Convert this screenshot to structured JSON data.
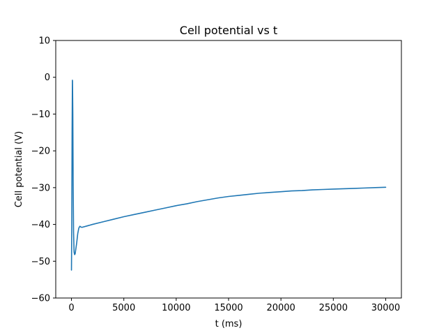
{
  "chart_data": {
    "type": "line",
    "title": "Cell potential vs t",
    "xlabel": "t (ms)",
    "ylabel": "Cell potential (V)",
    "xlim": [
      -1500,
      31500
    ],
    "ylim": [
      -60,
      10
    ],
    "xticks": [
      0,
      5000,
      10000,
      15000,
      20000,
      25000,
      30000
    ],
    "yticks": [
      -60,
      -50,
      -40,
      -30,
      -20,
      -10,
      0,
      10
    ],
    "grid": false,
    "legend": "none",
    "series": [
      {
        "color": "#1f77b4",
        "x": [
          0,
          30,
          60,
          90,
          100,
          130,
          160,
          200,
          250,
          300,
          350,
          400,
          500,
          600,
          700,
          800,
          900,
          1000,
          1500,
          2000,
          3000,
          4000,
          5000,
          6000,
          7000,
          8000,
          9000,
          10000,
          11000,
          12000,
          13000,
          14000,
          15000,
          16000,
          17000,
          18000,
          19000,
          20000,
          21000,
          22000,
          23000,
          24000,
          25000,
          26000,
          27000,
          28000,
          29000,
          30000
        ],
        "y": [
          -52.4,
          -40,
          -15,
          -0.8,
          -1.0,
          -10,
          -28,
          -42,
          -47.5,
          -48.2,
          -48.0,
          -47.0,
          -45.0,
          -42.5,
          -41.0,
          -40.5,
          -40.7,
          -40.8,
          -40.4,
          -40.0,
          -39.3,
          -38.6,
          -37.9,
          -37.3,
          -36.7,
          -36.1,
          -35.5,
          -34.9,
          -34.4,
          -33.8,
          -33.3,
          -32.8,
          -32.4,
          -32.1,
          -31.8,
          -31.5,
          -31.3,
          -31.1,
          -30.9,
          -30.8,
          -30.6,
          -30.5,
          -30.4,
          -30.3,
          -30.2,
          -30.1,
          -30.0,
          -29.9
        ]
      }
    ]
  }
}
